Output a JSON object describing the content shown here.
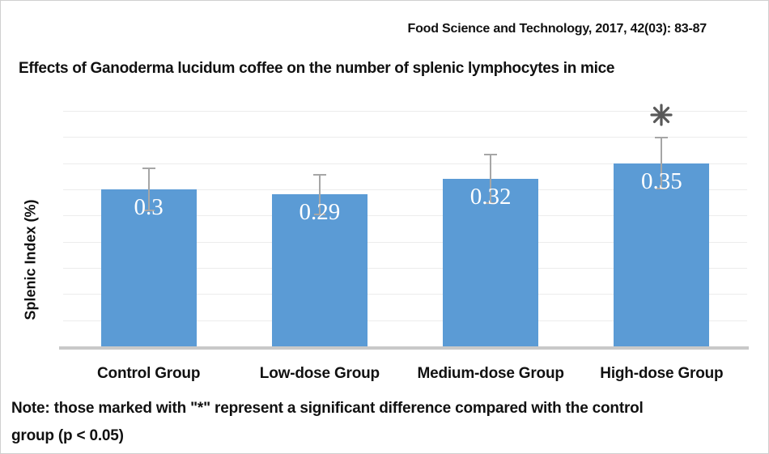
{
  "header": {
    "citation": "Food Science and Technology, 2017, 42(03): 83-87"
  },
  "chart_data": {
    "type": "bar",
    "title": "Effects of Ganoderma lucidum coffee on the number of splenic lymphocytes in mice",
    "categories": [
      "Control Group",
      "Low-dose Group",
      "Medium-dose Group",
      "High-dose Group"
    ],
    "values": [
      0.3,
      0.29,
      0.32,
      0.35
    ],
    "value_labels": [
      "0.3",
      "0.29",
      "0.32",
      "0.35"
    ],
    "errors": [
      0.042,
      0.04,
      0.048,
      0.05
    ],
    "significant": [
      false,
      false,
      false,
      true
    ],
    "significance_marker": "*",
    "xlabel": "",
    "ylabel": "Splenic Index (%)",
    "ylim": [
      0,
      0.45
    ],
    "gridline_step": 0.05,
    "grid": true,
    "legend": "none",
    "bar_color": "#5B9BD5",
    "error_bar_color": "#A6A6A6",
    "marker_color": "#595959",
    "gridline_color": "#ECECEC",
    "axis_line_color": "#C9C9C9"
  },
  "note": {
    "line1": "Note: those marked with \"*\" represent a significant difference compared with the control",
    "line2": "group (p < 0.05)"
  }
}
